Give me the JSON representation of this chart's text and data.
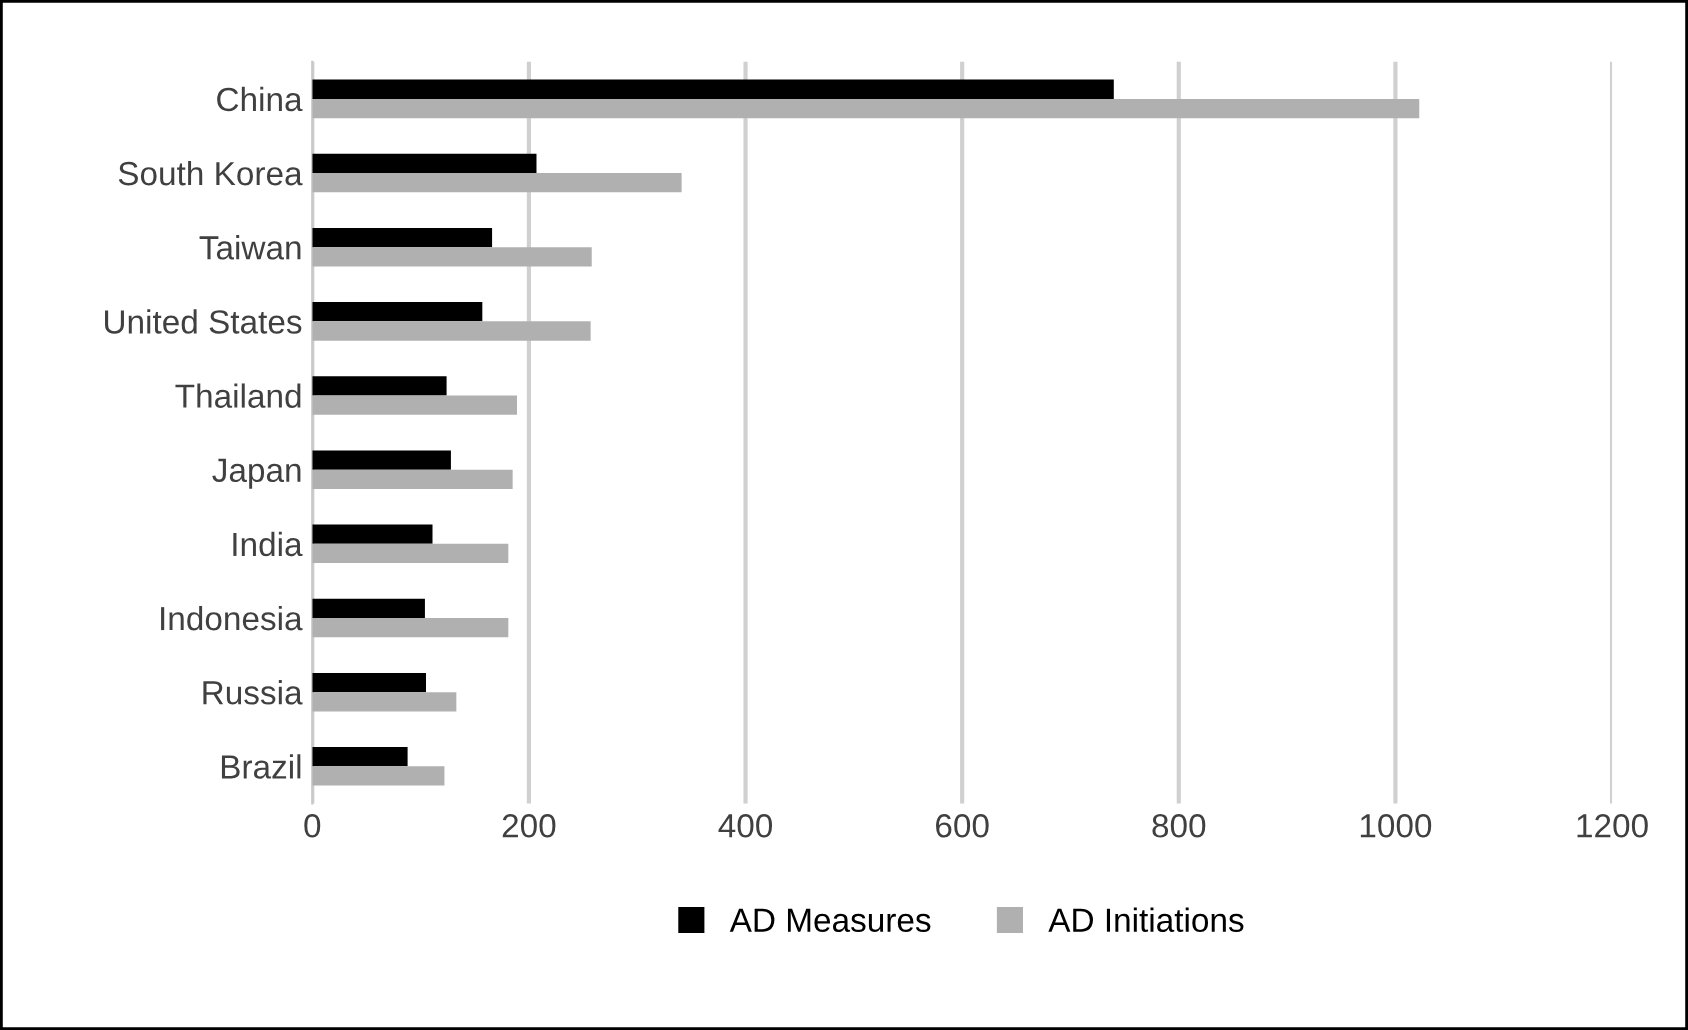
{
  "chart_data": {
    "type": "bar",
    "orientation": "horizontal",
    "categories": [
      "China",
      "South Korea",
      "Taiwan",
      "United States",
      "Thailand",
      "Japan",
      "India",
      "Indonesia",
      "Russia",
      "Brazil"
    ],
    "series": [
      {
        "name": "AD Measures",
        "color": "#000000",
        "values": [
          740,
          207,
          166,
          157,
          124,
          128,
          111,
          104,
          105,
          88
        ]
      },
      {
        "name": "AD Initiations",
        "color": "#b0b0b0",
        "values": [
          1022,
          341,
          258,
          257,
          189,
          185,
          181,
          181,
          133,
          122
        ]
      }
    ],
    "xlim": [
      0,
      1200
    ],
    "xticks": [
      0,
      200,
      400,
      600,
      800,
      1000,
      1200
    ],
    "grid": "x",
    "legend": "bottom"
  }
}
